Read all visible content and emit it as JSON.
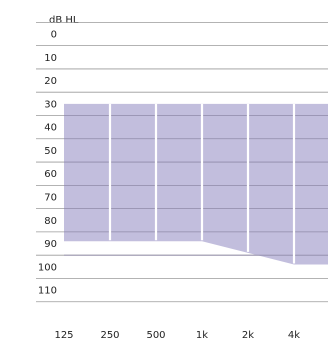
{
  "chart_data": {
    "type": "area",
    "title": "",
    "ylabel": "dB HL",
    "xlabel": "",
    "x": [
      "125",
      "250",
      "500",
      "1k",
      "2k",
      "4k"
    ],
    "y_ticks": [
      "0",
      "10",
      "20",
      "30",
      "40",
      "50",
      "60",
      "70",
      "80",
      "90",
      "100",
      "110"
    ],
    "ylim": [
      -5,
      115
    ],
    "y_inverted": true,
    "band": {
      "top": [
        30,
        30,
        30,
        30,
        30,
        30,
        30
      ],
      "bottom": [
        89,
        89,
        89,
        89,
        94,
        99,
        99
      ],
      "color": "#c2bedd"
    },
    "grid": true,
    "gridlines_visible_over_band": true
  }
}
